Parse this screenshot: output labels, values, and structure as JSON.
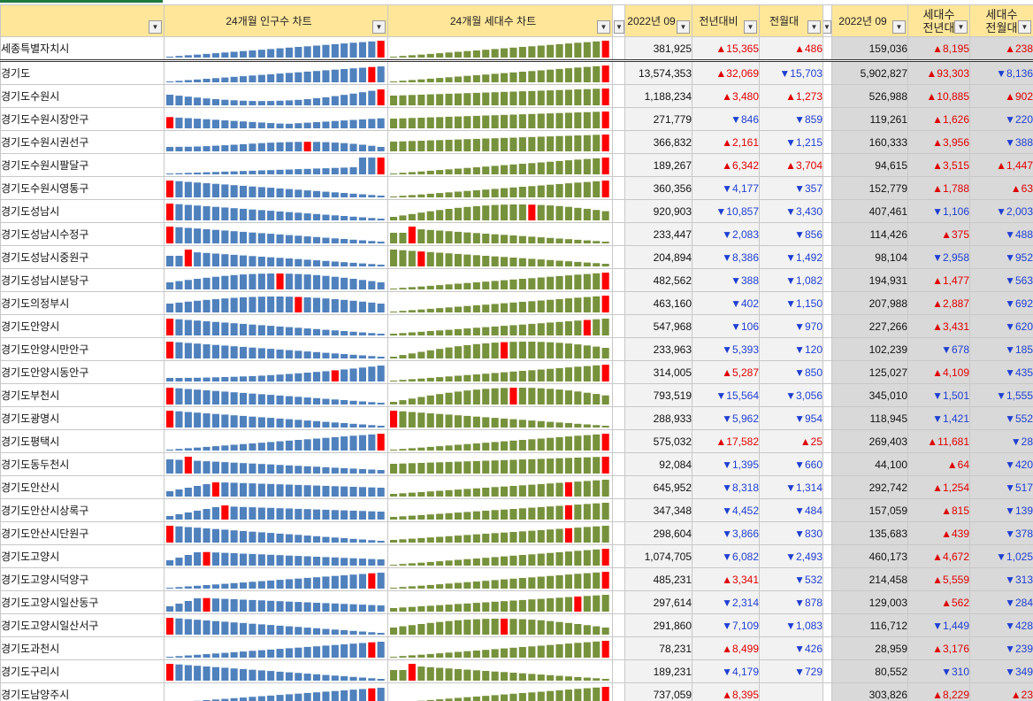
{
  "headers": {
    "name": "",
    "pop_chart": "24개월 인구수 차트",
    "hh_chart": "24개월 세대수 차트",
    "pop": "2022년 09",
    "pop_yoy": "전년대비",
    "pop_mom": "전월대",
    "hh": "2022년 09",
    "hh_yoy_1": "세대수",
    "hh_yoy_2": "전년대",
    "hh_mom_1": "세대수",
    "hh_mom_2": "전월대"
  },
  "colors": {
    "pop_bar": "#4f81bd",
    "hh_bar": "#77923c",
    "highlight": "#ff0000",
    "up": "#e00000",
    "down": "#1f3fd1"
  },
  "rows": [
    {
      "name": "세종특별자치시",
      "pop": "381,925",
      "pop_yoy": "▲15,365",
      "pop_mom": "▲486",
      "hh": "159,036",
      "hh_yoy": "▲8,195",
      "hh_mom": "▲238",
      "pc": "rise",
      "hc": "rise"
    },
    {
      "name": "경기도",
      "pop": "13,574,353",
      "pop_yoy": "▲32,069",
      "pop_mom": "▼15,703",
      "hh": "5,902,827",
      "hh_yoy": "▲93,303",
      "hh_mom": "▼8,136",
      "pc": "risepeak2",
      "hc": "rise"
    },
    {
      "name": "경기도수원시",
      "pop": "1,188,234",
      "pop_yoy": "▲3,480",
      "pop_mom": "▲1,273",
      "hh": "526,988",
      "hh_yoy": "▲10,885",
      "hh_mom": "▲902",
      "pc": "dipend",
      "hc": "flatrise"
    },
    {
      "name": "경기도수원시장안구",
      "pop": "271,779",
      "pop_yoy": "▼846",
      "pop_mom": "▼859",
      "hh": "119,261",
      "hh_yoy": "▲1,626",
      "hh_mom": "▼220",
      "pc": "ushape",
      "hc": "flatrise"
    },
    {
      "name": "경기도수원시권선구",
      "pop": "366,832",
      "pop_yoy": "▲2,161",
      "pop_mom": "▼1,215",
      "hh": "160,333",
      "hh_yoy": "▲3,956",
      "hh_mom": "▼388",
      "pc": "lowmid",
      "hc": "flatrise"
    },
    {
      "name": "경기도수원시팔달구",
      "pop": "189,267",
      "pop_yoy": "▲6,342",
      "pop_mom": "▲3,704",
      "hh": "94,615",
      "hh_yoy": "▲3,515",
      "hh_mom": "▲1,447",
      "pc": "latejump",
      "hc": "rise"
    },
    {
      "name": "경기도수원시영통구",
      "pop": "360,356",
      "pop_yoy": "▼4,177",
      "pop_mom": "▼357",
      "hh": "152,779",
      "hh_yoy": "▲1,788",
      "hh_mom": "▲63",
      "pc": "fallfirst",
      "hc": "rise"
    },
    {
      "name": "경기도성남시",
      "pop": "920,903",
      "pop_yoy": "▼10,857",
      "pop_mom": "▼3,430",
      "hh": "407,461",
      "hh_yoy": "▼1,106",
      "hh_mom": "▼2,003",
      "pc": "fallfirst",
      "hc": "humppeak"
    },
    {
      "name": "경기도성남시수정구",
      "pop": "233,447",
      "pop_yoy": "▼2,083",
      "pop_mom": "▼856",
      "hh": "114,426",
      "hh_yoy": "▲375",
      "hh_mom": "▼488",
      "pc": "fallfirst",
      "hc": "earlypeak"
    },
    {
      "name": "경기도성남시중원구",
      "pop": "204,894",
      "pop_yoy": "▼8,386",
      "pop_mom": "▼1,492",
      "hh": "98,104",
      "hh_yoy": "▼2,958",
      "hh_mom": "▼952",
      "pc": "earlypeak",
      "hc": "earlypeak2"
    },
    {
      "name": "경기도성남시분당구",
      "pop": "482,562",
      "pop_yoy": "▼388",
      "pop_mom": "▼1,082",
      "hh": "194,931",
      "hh_yoy": "▲1,477",
      "hh_mom": "▼563",
      "pc": "midpeak",
      "hc": "rise"
    },
    {
      "name": "경기도의정부시",
      "pop": "463,160",
      "pop_yoy": "▼402",
      "pop_mom": "▼1,150",
      "hh": "207,988",
      "hh_yoy": "▲2,887",
      "hh_mom": "▼692",
      "pc": "midpeak2",
      "hc": "rise"
    },
    {
      "name": "경기도안양시",
      "pop": "547,968",
      "pop_yoy": "▼106",
      "pop_mom": "▼970",
      "hh": "227,266",
      "hh_yoy": "▲3,431",
      "hh_mom": "▼620",
      "pc": "fallfirst",
      "hc": "risepeak3"
    },
    {
      "name": "경기도안양시만안구",
      "pop": "233,963",
      "pop_yoy": "▼5,393",
      "pop_mom": "▼120",
      "hh": "102,239",
      "hh_yoy": "▼678",
      "hh_mom": "▼185",
      "pc": "fallfirst",
      "hc": "hump"
    },
    {
      "name": "경기도안양시동안구",
      "pop": "314,005",
      "pop_yoy": "▲5,287",
      "pop_mom": "▼850",
      "hh": "125,027",
      "hh_yoy": "▲4,109",
      "hh_mom": "▼435",
      "pc": "lowmid2",
      "hc": "rise"
    },
    {
      "name": "경기도부천시",
      "pop": "793,519",
      "pop_yoy": "▼15,564",
      "pop_mom": "▼3,056",
      "hh": "345,010",
      "hh_yoy": "▼1,501",
      "hh_mom": "▼1,555",
      "pc": "fallfirst",
      "hc": "hump2"
    },
    {
      "name": "경기도광명시",
      "pop": "288,933",
      "pop_yoy": "▼5,962",
      "pop_mom": "▼954",
      "hh": "118,945",
      "hh_yoy": "▼1,421",
      "hh_mom": "▼552",
      "pc": "fallfirst",
      "hc": "fallfirst"
    },
    {
      "name": "경기도평택시",
      "pop": "575,032",
      "pop_yoy": "▲17,582",
      "pop_mom": "▲25",
      "hh": "269,403",
      "hh_yoy": "▲11,681",
      "hh_mom": "▼28",
      "pc": "rise",
      "hc": "rise"
    },
    {
      "name": "경기도동두천시",
      "pop": "92,084",
      "pop_yoy": "▼1,395",
      "pop_mom": "▼660",
      "hh": "44,100",
      "hh_yoy": "▲64",
      "hh_mom": "▼420",
      "pc": "earlypeak3",
      "hc": "flatrise"
    },
    {
      "name": "경기도안산시",
      "pop": "645,952",
      "pop_yoy": "▼8,318",
      "pop_mom": "▼1,314",
      "hh": "292,742",
      "hh_yoy": "▲1,254",
      "hh_mom": "▼517",
      "pc": "earlypeak4",
      "hc": "risepeak4"
    },
    {
      "name": "경기도안산시상록구",
      "pop": "347,348",
      "pop_yoy": "▼4,452",
      "pop_mom": "▼484",
      "hh": "157,059",
      "hh_yoy": "▲815",
      "hh_mom": "▼139",
      "pc": "earlypeak5",
      "hc": "risepeak4"
    },
    {
      "name": "경기도안산시단원구",
      "pop": "298,604",
      "pop_yoy": "▼3,866",
      "pop_mom": "▼830",
      "hh": "135,683",
      "hh_yoy": "▲439",
      "hh_mom": "▼378",
      "pc": "fallfirst",
      "hc": "risepeak4"
    },
    {
      "name": "경기도고양시",
      "pop": "1,074,705",
      "pop_yoy": "▼6,082",
      "pop_mom": "▼2,493",
      "hh": "460,173",
      "hh_yoy": "▲4,672",
      "hh_mom": "▼1,025",
      "pc": "earlypeak6",
      "hc": "rise"
    },
    {
      "name": "경기도고양시덕양구",
      "pop": "485,231",
      "pop_yoy": "▲3,341",
      "pop_mom": "▼532",
      "hh": "214,458",
      "hh_yoy": "▲5,559",
      "hh_mom": "▼313",
      "pc": "risepeak2",
      "hc": "rise"
    },
    {
      "name": "경기도고양시일산동구",
      "pop": "297,614",
      "pop_yoy": "▼2,314",
      "pop_mom": "▼878",
      "hh": "129,003",
      "hh_yoy": "▲562",
      "hh_mom": "▼284",
      "pc": "earlypeak6",
      "hc": "risepeak5"
    },
    {
      "name": "경기도고양시일산서구",
      "pop": "291,860",
      "pop_yoy": "▼7,109",
      "pop_mom": "▼1,083",
      "hh": "116,712",
      "hh_yoy": "▼1,449",
      "hh_mom": "▼428",
      "pc": "fallfirst",
      "hc": "midpeak"
    },
    {
      "name": "경기도과천시",
      "pop": "78,231",
      "pop_yoy": "▲8,499",
      "pop_mom": "▼426",
      "hh": "28,959",
      "hh_yoy": "▲3,176",
      "hh_mom": "▼239",
      "pc": "risepeak2",
      "hc": "rise"
    },
    {
      "name": "경기도구리시",
      "pop": "189,231",
      "pop_yoy": "▼4,179",
      "pop_mom": "▼729",
      "hh": "80,552",
      "hh_yoy": "▼310",
      "hh_mom": "▼349",
      "pc": "fallfirst",
      "hc": "earlypeak"
    },
    {
      "name": "경기도남양주시",
      "pop": "737,059",
      "pop_yoy": "▲8,395",
      "pop_mom": "",
      "hh": "303,826",
      "hh_yoy": "▲8,229",
      "hh_mom": "▲23",
      "pc": "risepeak2",
      "hc": "rise"
    }
  ]
}
